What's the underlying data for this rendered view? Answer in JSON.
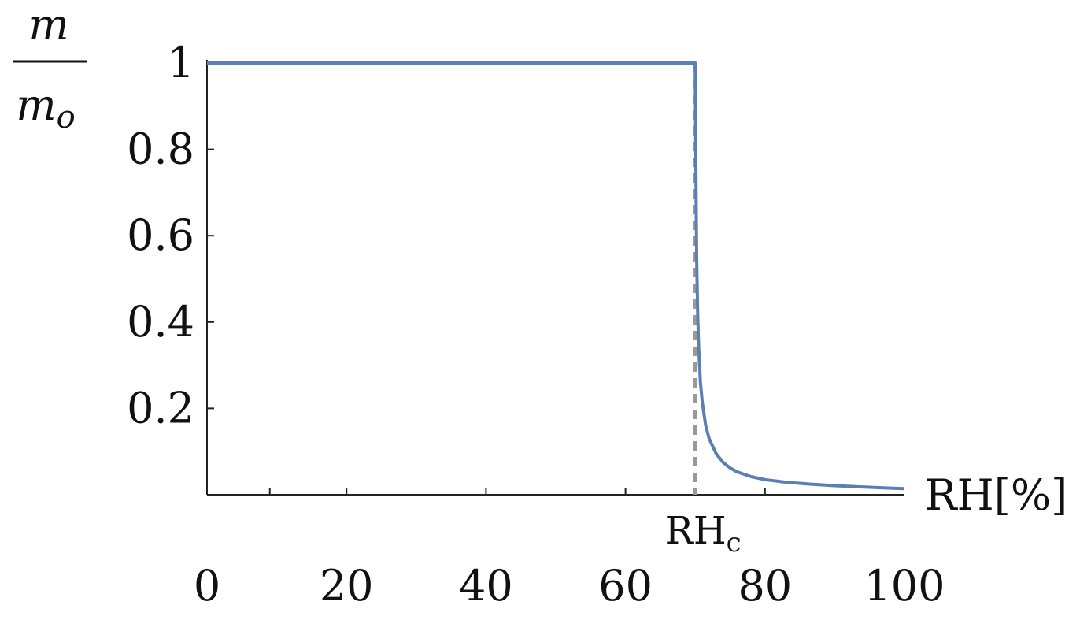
{
  "chart_data": {
    "type": "line",
    "xlabel": "RH[%]",
    "ylabel": {
      "numerator": "m",
      "denominator": "m",
      "subscript": "o"
    },
    "xlim": [
      0,
      100
    ],
    "ylim": [
      0,
      1
    ],
    "x_ticks": [
      0,
      20,
      40,
      60,
      80,
      100
    ],
    "x_tick_labels": [
      "0",
      "20",
      "40",
      "60",
      "80",
      "100"
    ],
    "x_minor_ticks": [
      9,
      20,
      40,
      60,
      80
    ],
    "y_ticks": [
      0.2,
      0.4,
      0.6,
      0.8,
      1
    ],
    "y_tick_labels": [
      "0.2",
      "0.4",
      "0.6",
      "0.8",
      "1"
    ],
    "grid": false,
    "critical_marker": {
      "x": 70,
      "label_main": "RH",
      "label_sub": "c",
      "style": "dashed",
      "color": "#999999"
    },
    "series": [
      {
        "color": "#5b7fb3",
        "x": [
          0,
          70,
          70.05,
          70.1,
          70.2,
          70.35,
          70.5,
          70.75,
          71,
          71.5,
          72,
          73,
          74,
          75,
          76,
          78,
          80,
          83,
          86,
          90,
          94,
          97,
          100
        ],
        "y": [
          1,
          1,
          0.88,
          0.74,
          0.55,
          0.42,
          0.34,
          0.26,
          0.215,
          0.16,
          0.13,
          0.095,
          0.075,
          0.062,
          0.053,
          0.042,
          0.035,
          0.029,
          0.025,
          0.021,
          0.018,
          0.016,
          0.014
        ]
      }
    ]
  }
}
